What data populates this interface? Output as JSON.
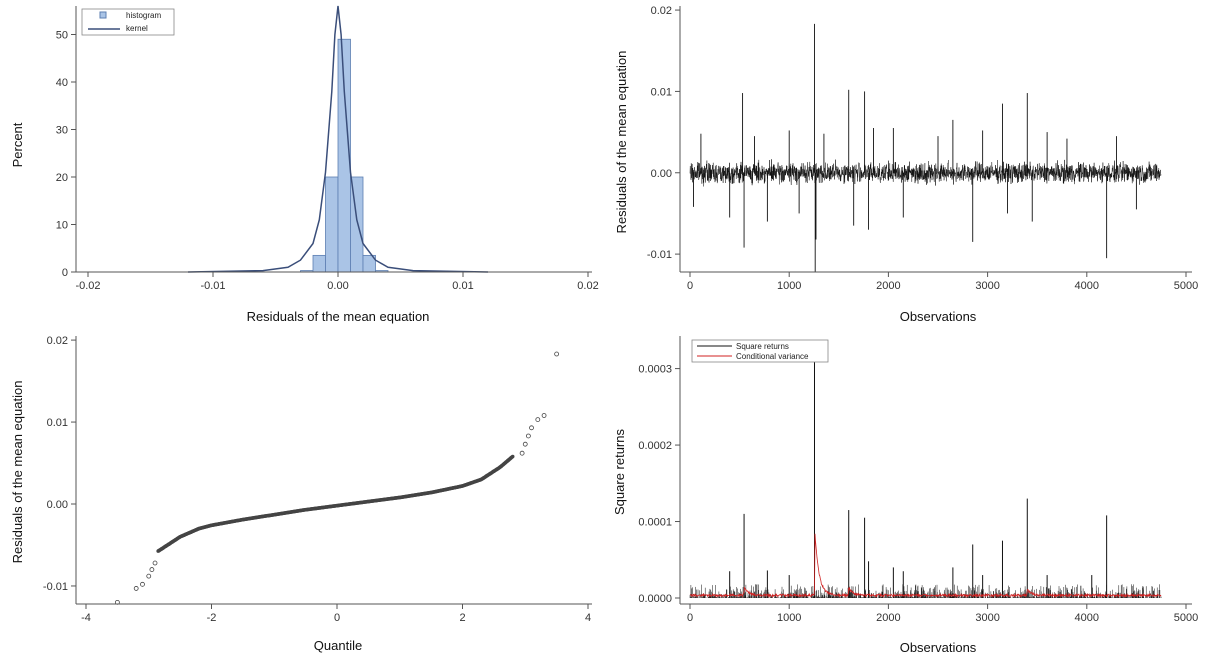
{
  "colors": {
    "histogram_fill": "#aac4e6",
    "histogram_edge": "#5d7fb2",
    "kernel_line": "#3a4e7a",
    "series_line": "#111111",
    "conditional_variance": "#d02020",
    "qq_point": "#444444",
    "axis": "#555555"
  },
  "chart_data": [
    {
      "type": "bar",
      "panel": "top-left",
      "xlabel": "Residuals of the mean equation",
      "ylabel": "Percent",
      "xlim": [
        -0.02,
        0.02
      ],
      "ylim": [
        0,
        56
      ],
      "x_ticks": [
        -0.02,
        -0.01,
        0.0,
        0.01,
        0.02
      ],
      "x_tick_labels": [
        "-0.02",
        "-0.01",
        "0.00",
        "0.01",
        "0.02"
      ],
      "y_ticks": [
        0,
        10,
        20,
        30,
        40,
        50
      ],
      "y_tick_labels": [
        "0",
        "10",
        "20",
        "30",
        "40",
        "50"
      ],
      "grid": false,
      "legend_position": "top-left",
      "bin_width": 0.001,
      "bins": [
        {
          "x": -0.0025,
          "value": 0.3
        },
        {
          "x": -0.0015,
          "value": 3.5
        },
        {
          "x": -0.0005,
          "value": 20
        },
        {
          "x": 0.0005,
          "value": 49
        },
        {
          "x": 0.0015,
          "value": 20
        },
        {
          "x": 0.0025,
          "value": 3.5
        },
        {
          "x": 0.0035,
          "value": 0.3
        }
      ],
      "series": [
        {
          "name": "histogram",
          "kind": "bar"
        },
        {
          "name": "kernel",
          "kind": "line",
          "x": [
            -0.012,
            -0.006,
            -0.004,
            -0.003,
            -0.002,
            -0.0015,
            -0.001,
            -0.0005,
            -0.00025,
            0.0,
            0.00025,
            0.0005,
            0.001,
            0.0015,
            0.002,
            0.003,
            0.004,
            0.006,
            0.012
          ],
          "y": [
            0,
            0.3,
            1,
            2.5,
            6,
            11,
            21,
            38,
            50,
            56,
            50,
            38,
            21,
            11,
            6,
            2.5,
            1,
            0.3,
            0
          ]
        }
      ]
    },
    {
      "type": "line",
      "panel": "top-right",
      "xlabel": "Observations",
      "ylabel": "Residuals of the mean equation",
      "xlim": [
        0,
        5000
      ],
      "ylim": [
        -0.0122,
        0.0205
      ],
      "x_ticks": [
        0,
        1000,
        2000,
        3000,
        4000,
        5000
      ],
      "x_tick_labels": [
        "0",
        "1000",
        "2000",
        "3000",
        "4000",
        "5000"
      ],
      "y_ticks": [
        -0.01,
        0.0,
        0.01,
        0.02
      ],
      "y_tick_labels": [
        "-0.01",
        "0.00",
        "0.01",
        "0.02"
      ],
      "grid": false,
      "n_obs": 4750,
      "noise_scale": 0.0012,
      "spikes": [
        {
          "x": 35,
          "value": -0.0042
        },
        {
          "x": 110,
          "value": 0.0048
        },
        {
          "x": 400,
          "value": -0.0055
        },
        {
          "x": 530,
          "value": 0.0098
        },
        {
          "x": 545,
          "value": -0.0092
        },
        {
          "x": 650,
          "value": 0.0045
        },
        {
          "x": 780,
          "value": -0.006
        },
        {
          "x": 1000,
          "value": 0.0052
        },
        {
          "x": 1100,
          "value": -0.005
        },
        {
          "x": 1255,
          "value": 0.0183
        },
        {
          "x": 1262,
          "value": -0.0122
        },
        {
          "x": 1270,
          "value": -0.0082
        },
        {
          "x": 1350,
          "value": 0.0048
        },
        {
          "x": 1600,
          "value": 0.0102
        },
        {
          "x": 1650,
          "value": -0.0065
        },
        {
          "x": 1760,
          "value": 0.01
        },
        {
          "x": 1800,
          "value": -0.007
        },
        {
          "x": 1850,
          "value": 0.0055
        },
        {
          "x": 2050,
          "value": 0.0055
        },
        {
          "x": 2150,
          "value": -0.0055
        },
        {
          "x": 2500,
          "value": 0.0045
        },
        {
          "x": 2650,
          "value": 0.0065
        },
        {
          "x": 2850,
          "value": -0.0085
        },
        {
          "x": 2950,
          "value": 0.0052
        },
        {
          "x": 3150,
          "value": 0.0085
        },
        {
          "x": 3200,
          "value": -0.005
        },
        {
          "x": 3400,
          "value": 0.0098
        },
        {
          "x": 3450,
          "value": -0.006
        },
        {
          "x": 3600,
          "value": 0.005
        },
        {
          "x": 3800,
          "value": 0.0042
        },
        {
          "x": 4200,
          "value": -0.0105
        },
        {
          "x": 4300,
          "value": 0.0045
        },
        {
          "x": 4500,
          "value": -0.0045
        }
      ]
    },
    {
      "type": "scatter",
      "panel": "bottom-left",
      "xlabel": "Quantile",
      "ylabel": "Residuals of the mean equation",
      "xlim": [
        -4,
        4
      ],
      "ylim": [
        -0.0122,
        0.0205
      ],
      "x_ticks": [
        -4,
        -2,
        0,
        2,
        4
      ],
      "x_tick_labels": [
        "-4",
        "-2",
        "0",
        "2",
        "4"
      ],
      "y_ticks": [
        -0.01,
        0.0,
        0.01,
        0.02
      ],
      "y_tick_labels": [
        "-0.01",
        "0.00",
        "0.01",
        "0.02"
      ],
      "grid": false,
      "curve": {
        "q": [
          -3.5,
          -3.2,
          -3.0,
          -2.8,
          -2.5,
          -2.2,
          -2.0,
          -1.5,
          -1.0,
          -0.5,
          0.0,
          0.5,
          1.0,
          1.5,
          2.0,
          2.3,
          2.6,
          2.8
        ],
        "r": [
          -0.012,
          -0.009,
          -0.0065,
          -0.0055,
          -0.004,
          -0.003,
          -0.0026,
          -0.0019,
          -0.0013,
          -0.0007,
          -0.0002,
          0.0003,
          0.0008,
          0.0014,
          0.0022,
          0.003,
          0.0045,
          0.0058
        ]
      },
      "outliers": [
        {
          "x": -3.5,
          "y": -0.012
        },
        {
          "x": -3.2,
          "y": -0.0103
        },
        {
          "x": -3.1,
          "y": -0.0098
        },
        {
          "x": -3.0,
          "y": -0.0088
        },
        {
          "x": -2.95,
          "y": -0.008
        },
        {
          "x": -2.9,
          "y": -0.0072
        },
        {
          "x": 2.95,
          "y": 0.0062
        },
        {
          "x": 3.0,
          "y": 0.0073
        },
        {
          "x": 3.05,
          "y": 0.0083
        },
        {
          "x": 3.1,
          "y": 0.0093
        },
        {
          "x": 3.2,
          "y": 0.0103
        },
        {
          "x": 3.3,
          "y": 0.0108
        },
        {
          "x": 3.5,
          "y": 0.0183
        }
      ]
    },
    {
      "type": "line",
      "panel": "bottom-right",
      "xlabel": "Observations",
      "ylabel": "Square returns",
      "xlim": [
        0,
        5000
      ],
      "ylim": [
        0,
        0.00034
      ],
      "x_ticks": [
        0,
        1000,
        2000,
        3000,
        4000,
        5000
      ],
      "x_tick_labels": [
        "0",
        "1000",
        "2000",
        "3000",
        "4000",
        "5000"
      ],
      "y_ticks": [
        0.0,
        0.0001,
        0.0002,
        0.0003
      ],
      "y_tick_labels": [
        "0.0000",
        "0.0001",
        "0.0002",
        "0.0003"
      ],
      "grid": false,
      "legend_position": "top-left",
      "series": [
        {
          "name": "Square returns",
          "spikes": [
            {
              "x": 545,
              "value": 0.00011
            },
            {
              "x": 1255,
              "value": 0.000335
            },
            {
              "x": 1600,
              "value": 0.000115
            },
            {
              "x": 1760,
              "value": 0.000105
            },
            {
              "x": 2050,
              "value": 4e-05
            },
            {
              "x": 2150,
              "value": 3.5e-05
            },
            {
              "x": 2650,
              "value": 4e-05
            },
            {
              "x": 2850,
              "value": 7e-05
            },
            {
              "x": 3150,
              "value": 7.5e-05
            },
            {
              "x": 3400,
              "value": 0.00013
            },
            {
              "x": 4200,
              "value": 0.000108
            },
            {
              "x": 400,
              "value": 3.5e-05
            },
            {
              "x": 780,
              "value": 3.6e-05
            },
            {
              "x": 1000,
              "value": 3e-05
            },
            {
              "x": 1800,
              "value": 4.8e-05
            },
            {
              "x": 2950,
              "value": 3e-05
            },
            {
              "x": 3600,
              "value": 3e-05
            },
            {
              "x": 4050,
              "value": 3e-05
            }
          ]
        },
        {
          "name": "Conditional variance",
          "peaks": [
            {
              "x": 1258,
              "value": 8.5e-05
            },
            {
              "x": 545,
              "value": 1.2e-05
            },
            {
              "x": 1600,
              "value": 1e-05
            },
            {
              "x": 3400,
              "value": 8e-06
            }
          ]
        }
      ]
    }
  ]
}
